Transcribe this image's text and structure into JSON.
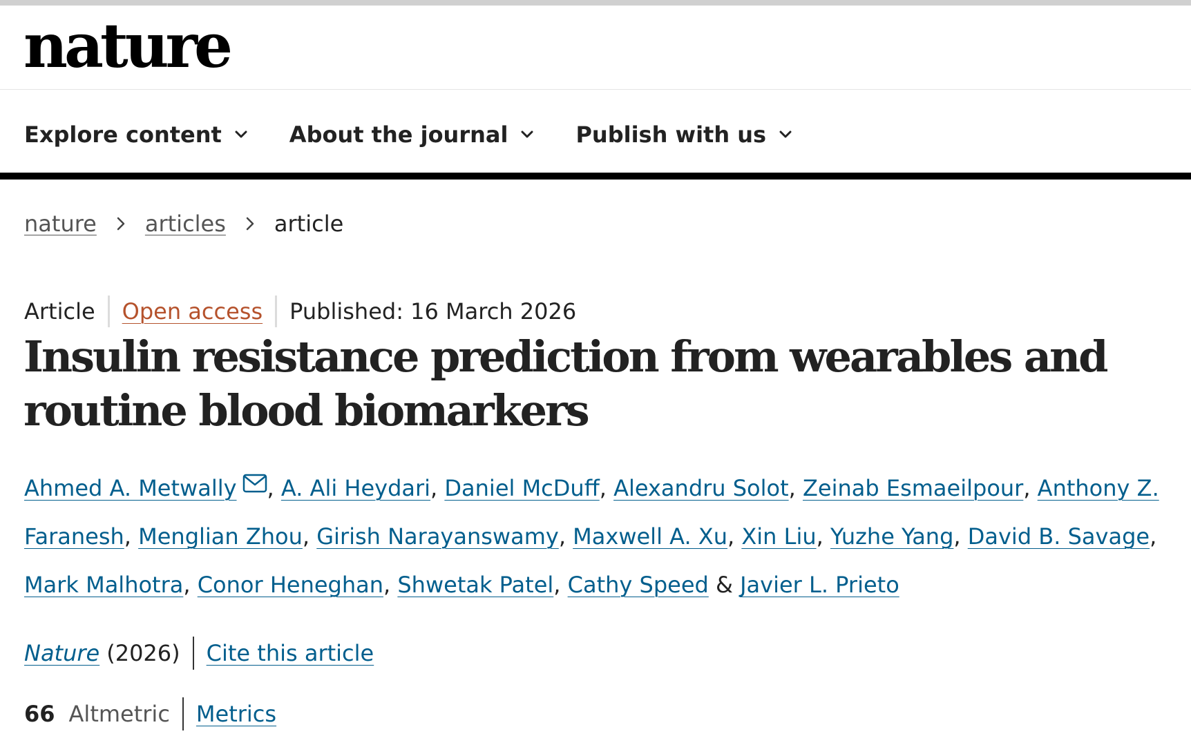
{
  "header": {
    "logo": "nature",
    "nav": [
      {
        "label": "Explore content"
      },
      {
        "label": "About the journal"
      },
      {
        "label": "Publish with us"
      }
    ]
  },
  "breadcrumb": {
    "items": [
      "nature",
      "articles"
    ],
    "current": "article"
  },
  "article": {
    "type": "Article",
    "access": "Open access",
    "published": "Published: 16 March 2026",
    "title_line1": "Insulin resistance prediction from wearables and",
    "title_line2": "routine blood biomarkers",
    "authors": [
      "Ahmed A. Metwally",
      "A. Ali Heydari",
      "Daniel McDuff",
      "Alexandru Solot",
      "Zeinab Esmaeilpour",
      "Anthony Z. Faranesh",
      "Menglian Zhou",
      "Girish Narayanswamy",
      "Maxwell A. Xu",
      "Xin Liu",
      "Yuzhe Yang",
      "David B. Savage",
      "Mark Malhotra",
      "Conor Heneghan",
      "Shwetak Patel",
      "Cathy Speed",
      "Javier L. Prieto"
    ],
    "author_separator": ", ",
    "author_final_separator": " & ",
    "journal": "Nature",
    "year": "(2026)",
    "cite_label": "Cite this article",
    "altmetric_count": "66",
    "altmetric_label": "Altmetric",
    "metrics_label": "Metrics"
  },
  "colors": {
    "link": "#025e8d",
    "open_access": "#b5522c",
    "text": "#222222"
  },
  "icons": {
    "nav_chevron": "chevron-down-icon",
    "breadcrumb_sep": "chevron-right-icon",
    "corresponding_author": "mail-icon"
  }
}
